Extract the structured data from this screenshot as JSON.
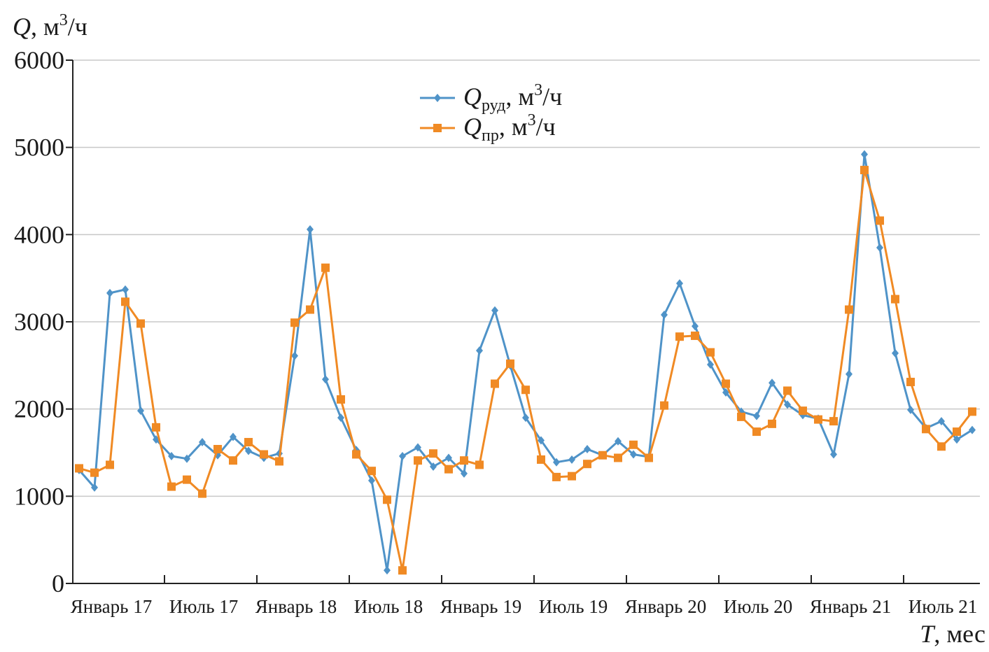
{
  "chart_data": {
    "type": "line",
    "ylabel_var": "Q",
    "ylabel_unit": ", м",
    "ylabel_unit_exp": "3",
    "ylabel_unit_tail": "/ч",
    "xlabel_var": "T",
    "xlabel_unit": ", мес",
    "ylim": [
      0,
      6000
    ],
    "yticks": [
      "0",
      "1000",
      "2000",
      "3000",
      "4000",
      "5000",
      "6000"
    ],
    "ytick_values": [
      0,
      1000,
      2000,
      3000,
      4000,
      5000,
      6000
    ],
    "x_tick_labels": [
      "Январь 17",
      "Июль 17",
      "Январь 18",
      "Июль 18",
      "Январь 19",
      "Июль 19",
      "Январь 20",
      "Июль 20",
      "Январь 21",
      "Июль 21"
    ],
    "x_tick_index": [
      0,
      6,
      12,
      18,
      24,
      30,
      36,
      42,
      48,
      54
    ],
    "grid": true,
    "legend_position": "top-center",
    "series": [
      {
        "name_var": "Q",
        "name_sub": "руд",
        "name_unit": ", м",
        "name_exp": "3",
        "name_tail": "/ч",
        "color": "#4f93c8",
        "marker": "diamond",
        "values": [
          1300,
          1100,
          3330,
          3370,
          1980,
          1650,
          1460,
          1430,
          1620,
          1470,
          1680,
          1520,
          1440,
          1490,
          2610,
          4060,
          2340,
          1900,
          1530,
          1180,
          150,
          1460,
          1560,
          1340,
          1440,
          1260,
          2670,
          3130,
          2500,
          1900,
          1640,
          1390,
          1420,
          1540,
          1470,
          1630,
          1480,
          1450,
          3080,
          3440,
          2950,
          2510,
          2190,
          1970,
          1920,
          2300,
          2050,
          1930,
          1890,
          1480,
          2400,
          4920,
          3850,
          2640,
          1990,
          1780,
          1860,
          1650,
          1760
        ]
      },
      {
        "name_var": "Q",
        "name_sub": "пр",
        "name_unit": ", м",
        "name_exp": "3",
        "name_tail": "/ч",
        "color": "#f08a24",
        "marker": "square",
        "values": [
          1320,
          1270,
          1360,
          3230,
          2980,
          1790,
          1110,
          1190,
          1030,
          1540,
          1410,
          1620,
          1480,
          1400,
          2990,
          3140,
          3620,
          2110,
          1480,
          1290,
          960,
          150,
          1410,
          1490,
          1310,
          1410,
          1360,
          2290,
          2520,
          2220,
          1420,
          1220,
          1230,
          1370,
          1470,
          1440,
          1590,
          1440,
          2040,
          2830,
          2840,
          2650,
          2290,
          1910,
          1740,
          1830,
          2210,
          1980,
          1880,
          1860,
          3140,
          4740,
          4160,
          3260,
          2310,
          1770,
          1570,
          1740,
          1970
        ]
      }
    ]
  }
}
